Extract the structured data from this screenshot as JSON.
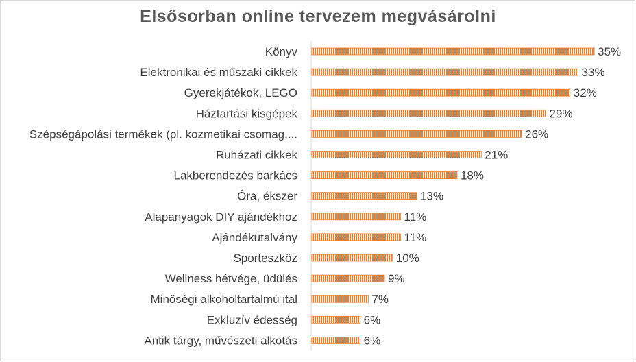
{
  "chart_data": {
    "type": "bar",
    "orientation": "horizontal",
    "title": "Elsősorban online tervezem megvásárolni",
    "categories": [
      "Könyv",
      "Elektronikai és műszaki cikkek",
      "Gyerekjátékok, LEGO",
      "Háztartási kisgépek",
      "Szépségápolási termékek (pl. kozmetikai csomag,...",
      "Ruházati cikkek",
      "Lakberendezés barkács",
      "Óra, ékszer",
      "Alapanyagok DIY ajándékhoz",
      "Ajándékutalvány",
      "Sporteszköz",
      "Wellness hétvége, üdülés",
      "Minőségi alkoholtartalmú ital",
      "Exkluzív édesség",
      "Antik tárgy, művészeti alkotás"
    ],
    "values": [
      35,
      33,
      32,
      29,
      26,
      21,
      18,
      13,
      11,
      11,
      10,
      9,
      7,
      6,
      6
    ],
    "data_labels": [
      "35%",
      "33%",
      "32%",
      "29%",
      "26%",
      "21%",
      "18%",
      "13%",
      "11%",
      "11%",
      "10%",
      "9%",
      "7%",
      "6%",
      "6%"
    ],
    "xlim": [
      0,
      35.5
    ],
    "grid": false,
    "legend": "none",
    "bar_color": "#ed7d31",
    "bar_pattern": "vertical-stripes"
  }
}
